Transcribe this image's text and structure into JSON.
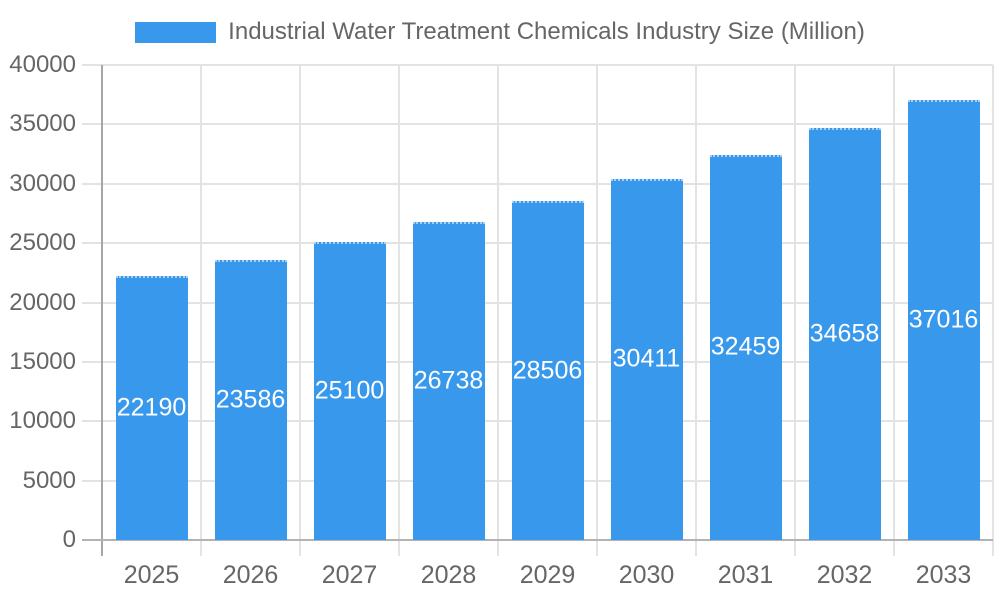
{
  "chart_data": {
    "type": "bar",
    "title": "Industrial Water Treatment Chemicals Industry Size (Million)",
    "categories": [
      "2025",
      "2026",
      "2027",
      "2028",
      "2029",
      "2030",
      "2031",
      "2032",
      "2033"
    ],
    "values": [
      22190,
      23586,
      25100,
      26738,
      28506,
      30411,
      32459,
      34658,
      37016
    ],
    "value_labels": [
      "22190",
      "23586",
      "25100",
      "26738",
      "28506",
      "30411",
      "32459",
      "34658",
      "37016"
    ],
    "xlabel": "",
    "ylabel": "",
    "ylim": [
      0,
      40000
    ],
    "y_ticks": [
      0,
      5000,
      10000,
      15000,
      20000,
      25000,
      30000,
      35000,
      40000
    ],
    "grid": true,
    "legend_position": "top",
    "value_label_position": "inside-center",
    "palette": {
      "bar": "#3899EC",
      "axis_text": "#666666",
      "legend_text": "#666666",
      "grid_line": "#e3e3e3",
      "axis_line": "#a6a6a6",
      "zero_line": "#b3b3b3",
      "value_label": "#ffffff",
      "background": "#ffffff"
    }
  }
}
